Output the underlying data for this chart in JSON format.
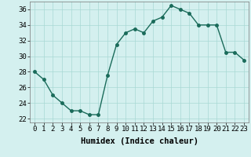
{
  "x": [
    0,
    1,
    2,
    3,
    4,
    5,
    6,
    7,
    8,
    9,
    10,
    11,
    12,
    13,
    14,
    15,
    16,
    17,
    18,
    19,
    20,
    21,
    22,
    23
  ],
  "y": [
    28,
    27,
    25,
    24,
    23,
    23,
    22.5,
    22.5,
    27.5,
    31.5,
    33,
    33.5,
    33,
    34.5,
    35,
    36.5,
    36,
    35.5,
    34,
    34,
    34,
    30.5,
    30.5,
    29.5
  ],
  "line_color": "#1a6b5a",
  "marker_color": "#1a6b5a",
  "bg_color": "#d4f0ef",
  "grid_color": "#a8d8d4",
  "xlabel": "Humidex (Indice chaleur)",
  "ylim": [
    21.5,
    37
  ],
  "xlim": [
    -0.5,
    23.5
  ],
  "yticks": [
    22,
    24,
    26,
    28,
    30,
    32,
    34,
    36
  ],
  "xticks": [
    0,
    1,
    2,
    3,
    4,
    5,
    6,
    7,
    8,
    9,
    10,
    11,
    12,
    13,
    14,
    15,
    16,
    17,
    18,
    19,
    20,
    21,
    22,
    23
  ],
  "xlabel_fontsize": 7.5,
  "tick_fontsize": 6.5,
  "line_width": 1.0,
  "marker_size": 2.5
}
